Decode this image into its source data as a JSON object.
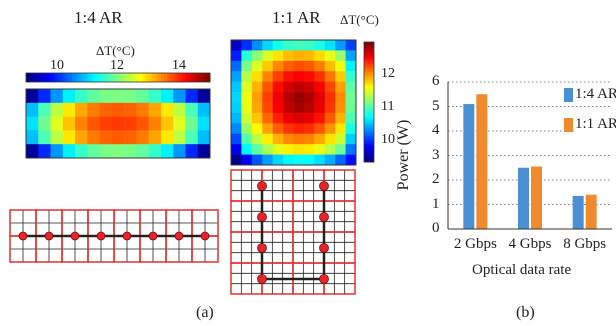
{
  "panel_a": {
    "left_title": "1:4 AR",
    "right_title": "1:1 AR",
    "left_colorbar": {
      "label": "ΔT(°C)",
      "ticks": [
        "10",
        "12",
        "14"
      ],
      "range": [
        9,
        15
      ]
    },
    "right_colorbar": {
      "label": "ΔT(°C)",
      "ticks": [
        "12",
        "11",
        "10"
      ],
      "range": [
        9.3,
        12.9
      ]
    },
    "caption": "(a)",
    "heatmap_left_grid": {
      "rows": 5,
      "cols": 15
    },
    "heatmap_right_grid": {
      "rows": 12,
      "cols": 12
    },
    "topology_left": {
      "rows": 2,
      "cols": 8,
      "routers": 8
    },
    "topology_right": {
      "rows": 4,
      "cols": 4,
      "routers": 8
    }
  },
  "chart_data": {
    "type": "bar",
    "categories": [
      "2 Gbps",
      "4 Gbps",
      "8 Gbps"
    ],
    "series": [
      {
        "name": "1:4 AR",
        "values": [
          5.1,
          2.5,
          1.35
        ],
        "color": "#4a90d2"
      },
      {
        "name": "1:1 AR",
        "values": [
          5.5,
          2.55,
          1.4
        ],
        "color": "#f08a2c"
      }
    ],
    "ylabel": "Power (W)",
    "xlabel": "Optical data rate",
    "ylim": [
      0,
      6
    ],
    "yticks": [
      "0",
      "1",
      "2",
      "3",
      "4",
      "5",
      "6"
    ],
    "grid": "dotted horizontal",
    "legend_position": "right",
    "caption": "(b)"
  }
}
